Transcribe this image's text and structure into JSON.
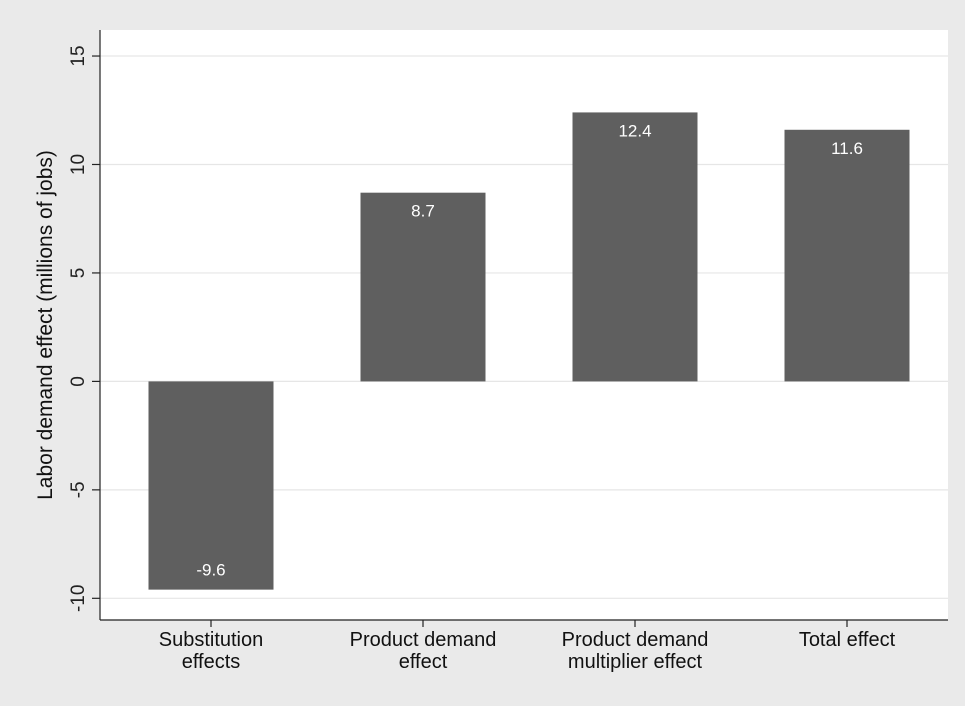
{
  "chart_data": {
    "type": "bar",
    "categories": [
      [
        "Substitution",
        "effects"
      ],
      [
        "Product demand",
        "effect"
      ],
      [
        "Product demand",
        "multiplier effect"
      ],
      [
        "Total effect"
      ]
    ],
    "values": [
      -9.6,
      8.7,
      12.4,
      11.6
    ],
    "data_labels": [
      "-9.6",
      "8.7",
      "12.4",
      "11.6"
    ],
    "ylabel": "Labor demand effect (millions of jobs)",
    "ylim": [
      -11,
      16.2
    ],
    "yticks": [
      -10,
      -5,
      0,
      5,
      10,
      15
    ],
    "ytick_labels": [
      "-10",
      "-5",
      "0",
      "5",
      "10",
      "15"
    ],
    "grid": true,
    "colors": {
      "bar": "#5f5f5f",
      "background": "#eaeaea",
      "plot_background": "#ffffff",
      "grid": "#e6e6e6",
      "axis": "#222222"
    }
  }
}
